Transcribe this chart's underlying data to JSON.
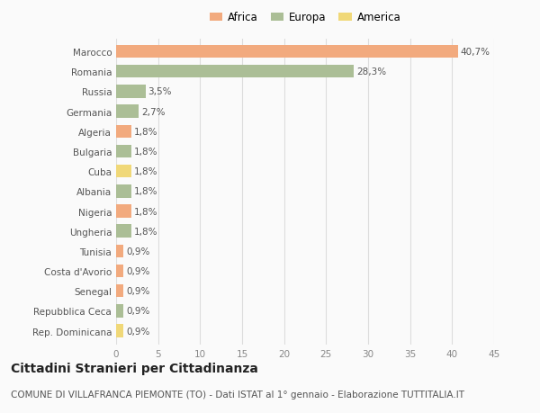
{
  "categories": [
    "Marocco",
    "Romania",
    "Russia",
    "Germania",
    "Algeria",
    "Bulgaria",
    "Cuba",
    "Albania",
    "Nigeria",
    "Ungheria",
    "Tunisia",
    "Costa d'Avorio",
    "Senegal",
    "Repubblica Ceca",
    "Rep. Dominicana"
  ],
  "values": [
    40.7,
    28.3,
    3.5,
    2.7,
    1.8,
    1.8,
    1.8,
    1.8,
    1.8,
    1.8,
    0.9,
    0.9,
    0.9,
    0.9,
    0.9
  ],
  "labels": [
    "40,7%",
    "28,3%",
    "3,5%",
    "2,7%",
    "1,8%",
    "1,8%",
    "1,8%",
    "1,8%",
    "1,8%",
    "1,8%",
    "0,9%",
    "0,9%",
    "0,9%",
    "0,9%",
    "0,9%"
  ],
  "continent": [
    "Africa",
    "Europa",
    "Europa",
    "Europa",
    "Africa",
    "Europa",
    "America",
    "Europa",
    "Africa",
    "Europa",
    "Africa",
    "Africa",
    "Africa",
    "Europa",
    "America"
  ],
  "colors": {
    "Africa": "#F2AA7E",
    "Europa": "#ABBE96",
    "America": "#F0D878"
  },
  "xlim": [
    0,
    45
  ],
  "xticks": [
    0,
    5,
    10,
    15,
    20,
    25,
    30,
    35,
    40,
    45
  ],
  "title": "Cittadini Stranieri per Cittadinanza",
  "subtitle": "COMUNE DI VILLAFRANCA PIEMONTE (TO) - Dati ISTAT al 1° gennaio - Elaborazione TUTTITALIA.IT",
  "background_color": "#FAFAFA",
  "grid_color": "#DDDDDD",
  "bar_height": 0.65,
  "title_fontsize": 10,
  "subtitle_fontsize": 7.5,
  "tick_fontsize": 7.5,
  "label_fontsize": 7.5
}
